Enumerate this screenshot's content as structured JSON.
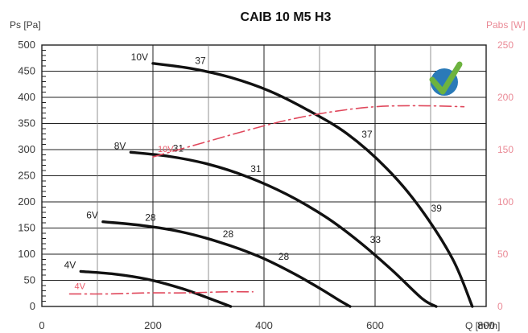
{
  "chart_data": {
    "type": "line",
    "title": "CAIB 10 M5 H3",
    "ylabel": "Ps [Pa]",
    "ylabel_right": "Pabs [W]",
    "xlabel": "Q [m³/h]",
    "xlim": [
      0,
      800
    ],
    "ylim": [
      0,
      500
    ],
    "ylim_right": [
      0,
      250
    ],
    "x_ticks": [
      "0",
      "200",
      "400",
      "600",
      "800"
    ],
    "y_ticks": [
      "0",
      "50",
      "100",
      "150",
      "200",
      "250",
      "300",
      "350",
      "400",
      "450",
      "500"
    ],
    "y_right_ticks": [
      "0",
      "50",
      "100",
      "150",
      "200",
      "250"
    ],
    "grid": true,
    "colors": {
      "pressure": "#111111",
      "power": "#e0485c",
      "grid": "#222222"
    },
    "series": [
      {
        "name": "10V",
        "axis": "left",
        "x": [
          200,
          270,
          340,
          410,
          480,
          550,
          620,
          680,
          740,
          775
        ],
        "y": [
          465,
          455,
          438,
          412,
          375,
          330,
          265,
          190,
          90,
          0
        ],
        "labels": [
          {
            "text": "37",
            "x": 270,
            "y": 455
          },
          {
            "text": "37",
            "x": 570,
            "y": 314
          },
          {
            "text": "39",
            "x": 695,
            "y": 172
          }
        ]
      },
      {
        "name": "8V",
        "axis": "left",
        "x": [
          160,
          230,
          300,
          370,
          440,
          510,
          570,
          630,
          685,
          710
        ],
        "y": [
          295,
          287,
          272,
          248,
          215,
          172,
          125,
          70,
          15,
          0
        ],
        "labels": [
          {
            "text": "31",
            "x": 230,
            "y": 287
          },
          {
            "text": "31",
            "x": 370,
            "y": 248
          },
          {
            "text": "33",
            "x": 585,
            "y": 112
          }
        ]
      },
      {
        "name": "6V",
        "axis": "left",
        "x": [
          110,
          180,
          250,
          320,
          390,
          450,
          500,
          535,
          555
        ],
        "y": [
          162,
          155,
          143,
          123,
          96,
          65,
          35,
          12,
          0
        ],
        "labels": [
          {
            "text": "28",
            "x": 180,
            "y": 155
          },
          {
            "text": "28",
            "x": 320,
            "y": 123
          },
          {
            "text": "28",
            "x": 420,
            "y": 80
          }
        ]
      },
      {
        "name": "4V",
        "axis": "left",
        "x": [
          70,
          130,
          190,
          250,
          300,
          340
        ],
        "y": [
          67,
          62,
          52,
          35,
          16,
          0
        ],
        "labels": []
      },
      {
        "name": "10V",
        "axis": "right",
        "x": [
          200,
          280,
          360,
          440,
          520,
          600,
          680,
          760
        ],
        "y": [
          143,
          155,
          167,
          178,
          186,
          191,
          192,
          191
        ],
        "labels": []
      },
      {
        "name": "4V",
        "axis": "right",
        "x": [
          50,
          120,
          190,
          260,
          330,
          380
        ],
        "y": [
          12,
          12,
          13,
          13,
          14,
          14
        ],
        "labels": []
      }
    ]
  }
}
